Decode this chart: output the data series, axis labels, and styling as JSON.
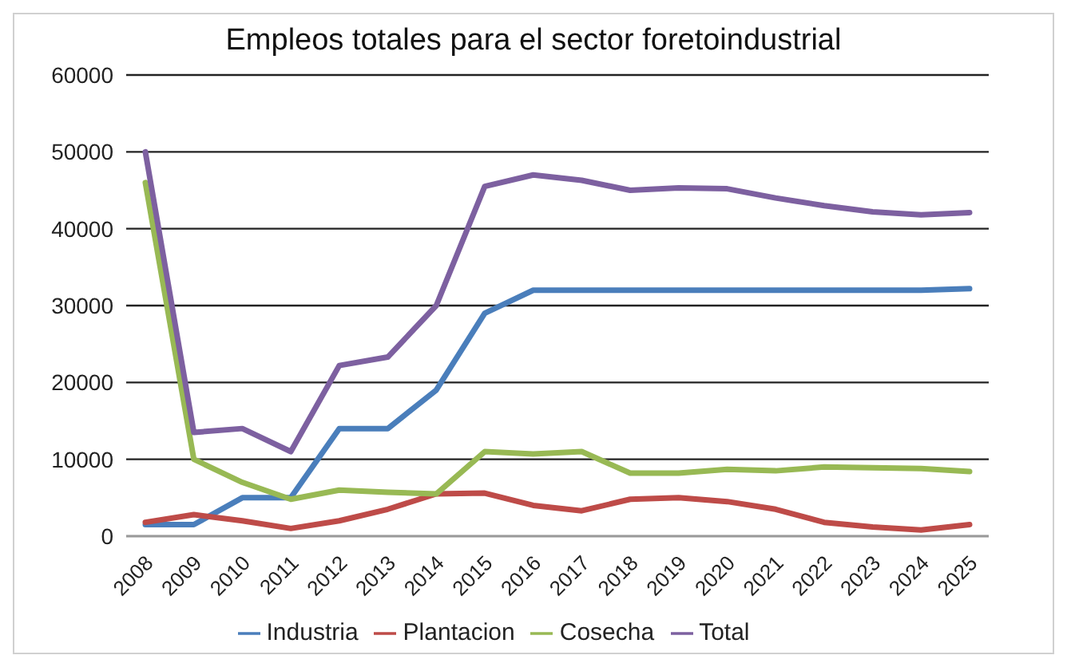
{
  "chart_data": {
    "type": "line",
    "title": "Empleos totales para el sector foretoindustrial",
    "categories": [
      "2008",
      "2009",
      "2010",
      "2011",
      "2012",
      "2013",
      "2014",
      "2015",
      "2016",
      "2017",
      "2018",
      "2019",
      "2020",
      "2021",
      "2022",
      "2023",
      "2024",
      "2025"
    ],
    "series": [
      {
        "name": "Industria",
        "color": "#4a7ebb",
        "values": [
          1500,
          1500,
          5000,
          5000,
          14000,
          14000,
          19000,
          29000,
          32000,
          32000,
          32000,
          32000,
          32000,
          32000,
          32000,
          32000,
          32000,
          32200
        ]
      },
      {
        "name": "Plantacion",
        "color": "#be4b48",
        "values": [
          1800,
          2800,
          2000,
          1000,
          2000,
          3500,
          5500,
          5600,
          4000,
          3300,
          4800,
          5000,
          4500,
          3500,
          1800,
          1200,
          800,
          1500
        ]
      },
      {
        "name": "Cosecha",
        "color": "#98b954",
        "values": [
          46000,
          10000,
          7000,
          4800,
          6000,
          5700,
          5500,
          11000,
          10700,
          11000,
          8200,
          8200,
          8700,
          8500,
          9000,
          8900,
          8800,
          8400
        ]
      },
      {
        "name": "Total",
        "color": "#7d60a0",
        "values": [
          50000,
          13500,
          14000,
          11000,
          22200,
          23300,
          30000,
          45500,
          47000,
          46300,
          45000,
          45300,
          45200,
          44000,
          43000,
          42200,
          41800,
          42100
        ]
      }
    ],
    "ylim": [
      0,
      60000
    ],
    "yticks": [
      0,
      10000,
      20000,
      30000,
      40000,
      50000,
      60000
    ],
    "grid": "y",
    "legend": "bottom",
    "marker": "none",
    "line_style": "solid"
  }
}
